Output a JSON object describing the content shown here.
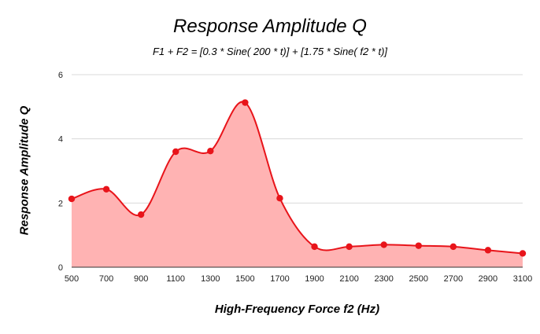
{
  "chart_data": {
    "type": "area",
    "title": "Response Amplitude Q",
    "subtitle": "F1 + F2 = [0.3 * Sine( 200 * t)] + [1.75 * Sine( f2 * t)]",
    "xlabel": "High-Frequency Force f2 (Hz)",
    "ylabel": "Response Amplitude Q",
    "x": [
      500,
      700,
      900,
      1100,
      1300,
      1500,
      1700,
      1900,
      2100,
      2300,
      2500,
      2700,
      2900,
      3100
    ],
    "values": [
      2.13,
      2.43,
      1.64,
      3.6,
      3.62,
      5.13,
      2.15,
      0.64,
      0.64,
      0.7,
      0.67,
      0.64,
      0.53,
      0.43
    ],
    "x_ticks": [
      "500",
      "700",
      "900",
      "1100",
      "1300",
      "1500",
      "1700",
      "1900",
      "2100",
      "2300",
      "2500",
      "2700",
      "2900",
      "3100"
    ],
    "y_ticks": [
      "0",
      "2",
      "4",
      "6"
    ],
    "xlim": [
      500,
      3100
    ],
    "ylim": [
      0,
      6
    ],
    "grid": "horizontal",
    "colors": {
      "line": "#e8141a",
      "fill": "#ffb3b3",
      "grid": "#d9d9d9",
      "baseline": "#333333"
    }
  }
}
